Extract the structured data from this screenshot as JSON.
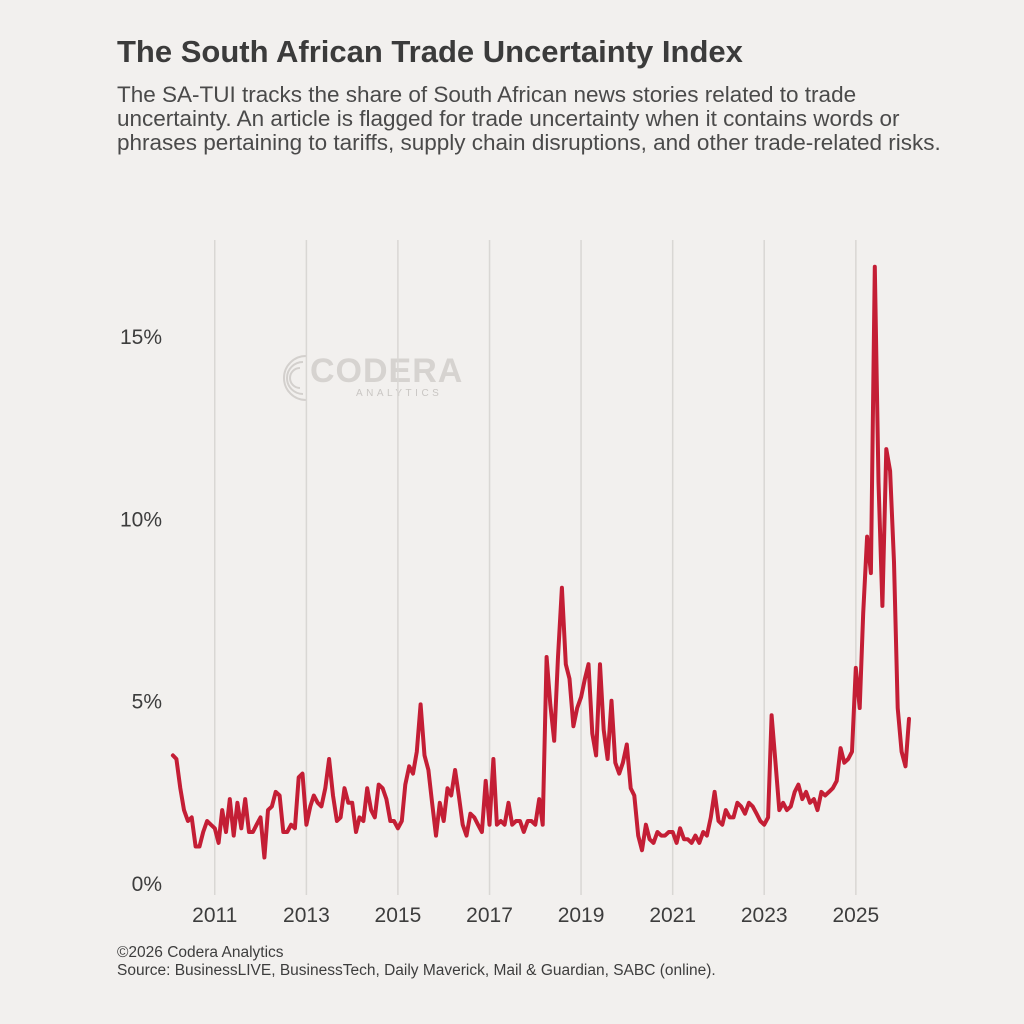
{
  "title": "The South African Trade Uncertainty Index",
  "subtitle": "The SA-TUI tracks the share of South African news stories related to trade uncertainty. An article is flagged for trade uncertainty when it contains words or phrases pertaining to tariffs, supply chain disruptions, and other trade-related risks.",
  "watermark": {
    "name": "CODERA",
    "tagline": "ANALYTICS"
  },
  "footer": {
    "copyright": "©2026 Codera Analytics",
    "source": "Source: BusinessLIVE, BusinessTech, Daily Maverick, Mail & Guardian, SABC (online)."
  },
  "colors": {
    "line": "#c41e35",
    "grid": "#d9d7d4",
    "background": "#f2f0ee",
    "text": "#3d3d3d"
  },
  "chart_data": {
    "type": "line",
    "xlim": [
      "2010-01-01",
      "2026-03-01"
    ],
    "ylim": [
      0,
      17
    ],
    "grid": "vertical only",
    "x_ticks": [
      {
        "date": "2011-01-01",
        "label": "2011"
      },
      {
        "date": "2013-01-01",
        "label": "2013"
      },
      {
        "date": "2015-01-01",
        "label": "2015"
      },
      {
        "date": "2017-01-01",
        "label": "2017"
      },
      {
        "date": "2019-01-01",
        "label": "2019"
      },
      {
        "date": "2021-01-01",
        "label": "2021"
      },
      {
        "date": "2023-01-01",
        "label": "2023"
      },
      {
        "date": "2025-01-01",
        "label": "2025"
      }
    ],
    "y_ticks": [
      {
        "value": 0,
        "label": "0%"
      },
      {
        "value": 5,
        "label": "5%"
      },
      {
        "value": 10,
        "label": "10%"
      },
      {
        "value": 15,
        "label": "15%"
      }
    ],
    "series": [
      {
        "values": [
          [
            "2010-02-01",
            3.5
          ],
          [
            "2010-03-01",
            3.4
          ],
          [
            "2010-04-01",
            2.6
          ],
          [
            "2010-05-01",
            2.0
          ],
          [
            "2010-06-01",
            1.7
          ],
          [
            "2010-07-01",
            1.8
          ],
          [
            "2010-08-01",
            1.0
          ],
          [
            "2010-09-01",
            1.0
          ],
          [
            "2010-10-01",
            1.4
          ],
          [
            "2010-11-01",
            1.7
          ],
          [
            "2010-12-01",
            1.6
          ],
          [
            "2011-01-01",
            1.5
          ],
          [
            "2011-02-01",
            1.1
          ],
          [
            "2011-03-01",
            2.0
          ],
          [
            "2011-04-01",
            1.4
          ],
          [
            "2011-05-01",
            2.3
          ],
          [
            "2011-06-01",
            1.3
          ],
          [
            "2011-07-01",
            2.2
          ],
          [
            "2011-08-01",
            1.5
          ],
          [
            "2011-09-01",
            2.3
          ],
          [
            "2011-10-01",
            1.4
          ],
          [
            "2011-11-01",
            1.4
          ],
          [
            "2011-12-01",
            1.6
          ],
          [
            "2012-01-01",
            1.8
          ],
          [
            "2012-02-01",
            0.7
          ],
          [
            "2012-03-01",
            2.0
          ],
          [
            "2012-04-01",
            2.1
          ],
          [
            "2012-05-01",
            2.5
          ],
          [
            "2012-06-01",
            2.4
          ],
          [
            "2012-07-01",
            1.4
          ],
          [
            "2012-08-01",
            1.4
          ],
          [
            "2012-09-01",
            1.6
          ],
          [
            "2012-10-01",
            1.5
          ],
          [
            "2012-11-01",
            2.9
          ],
          [
            "2012-12-01",
            3.0
          ],
          [
            "2013-01-01",
            1.6
          ],
          [
            "2013-02-01",
            2.1
          ],
          [
            "2013-03-01",
            2.4
          ],
          [
            "2013-04-01",
            2.2
          ],
          [
            "2013-05-01",
            2.1
          ],
          [
            "2013-06-01",
            2.6
          ],
          [
            "2013-07-01",
            3.4
          ],
          [
            "2013-08-01",
            2.4
          ],
          [
            "2013-09-01",
            1.7
          ],
          [
            "2013-10-01",
            1.8
          ],
          [
            "2013-11-01",
            2.6
          ],
          [
            "2013-12-01",
            2.2
          ],
          [
            "2014-01-01",
            2.2
          ],
          [
            "2014-02-01",
            1.4
          ],
          [
            "2014-03-01",
            1.8
          ],
          [
            "2014-04-01",
            1.7
          ],
          [
            "2014-05-01",
            2.6
          ],
          [
            "2014-06-01",
            2.0
          ],
          [
            "2014-07-01",
            1.8
          ],
          [
            "2014-08-01",
            2.7
          ],
          [
            "2014-09-01",
            2.6
          ],
          [
            "2014-10-01",
            2.3
          ],
          [
            "2014-11-01",
            1.7
          ],
          [
            "2014-12-01",
            1.7
          ],
          [
            "2015-01-01",
            1.5
          ],
          [
            "2015-02-01",
            1.7
          ],
          [
            "2015-03-01",
            2.7
          ],
          [
            "2015-04-01",
            3.2
          ],
          [
            "2015-05-01",
            3.0
          ],
          [
            "2015-06-01",
            3.6
          ],
          [
            "2015-07-01",
            4.9
          ],
          [
            "2015-08-01",
            3.5
          ],
          [
            "2015-09-01",
            3.1
          ],
          [
            "2015-10-01",
            2.2
          ],
          [
            "2015-11-01",
            1.3
          ],
          [
            "2015-12-01",
            2.2
          ],
          [
            "2016-01-01",
            1.7
          ],
          [
            "2016-02-01",
            2.6
          ],
          [
            "2016-03-01",
            2.4
          ],
          [
            "2016-04-01",
            3.1
          ],
          [
            "2016-05-01",
            2.4
          ],
          [
            "2016-06-01",
            1.6
          ],
          [
            "2016-07-01",
            1.3
          ],
          [
            "2016-08-01",
            1.9
          ],
          [
            "2016-09-01",
            1.8
          ],
          [
            "2016-10-01",
            1.6
          ],
          [
            "2016-11-01",
            1.4
          ],
          [
            "2016-12-01",
            2.8
          ],
          [
            "2017-01-01",
            1.6
          ],
          [
            "2017-02-01",
            3.4
          ],
          [
            "2017-03-01",
            1.6
          ],
          [
            "2017-04-01",
            1.7
          ],
          [
            "2017-05-01",
            1.6
          ],
          [
            "2017-06-01",
            2.2
          ],
          [
            "2017-07-01",
            1.6
          ],
          [
            "2017-08-01",
            1.7
          ],
          [
            "2017-09-01",
            1.7
          ],
          [
            "2017-10-01",
            1.4
          ],
          [
            "2017-11-01",
            1.7
          ],
          [
            "2017-12-01",
            1.7
          ],
          [
            "2018-01-01",
            1.6
          ],
          [
            "2018-02-01",
            2.3
          ],
          [
            "2018-03-01",
            1.6
          ],
          [
            "2018-04-01",
            6.2
          ],
          [
            "2018-05-01",
            4.9
          ],
          [
            "2018-06-01",
            3.9
          ],
          [
            "2018-07-01",
            6.2
          ],
          [
            "2018-08-01",
            8.1
          ],
          [
            "2018-09-01",
            6.0
          ],
          [
            "2018-10-01",
            5.6
          ],
          [
            "2018-11-01",
            4.3
          ],
          [
            "2018-12-01",
            4.8
          ],
          [
            "2019-01-01",
            5.1
          ],
          [
            "2019-02-01",
            5.6
          ],
          [
            "2019-03-01",
            6.0
          ],
          [
            "2019-04-01",
            4.1
          ],
          [
            "2019-05-01",
            3.5
          ],
          [
            "2019-06-01",
            6.0
          ],
          [
            "2019-07-01",
            4.2
          ],
          [
            "2019-08-01",
            3.4
          ],
          [
            "2019-09-01",
            5.0
          ],
          [
            "2019-10-01",
            3.3
          ],
          [
            "2019-11-01",
            3.0
          ],
          [
            "2019-12-01",
            3.3
          ],
          [
            "2020-01-01",
            3.8
          ],
          [
            "2020-02-01",
            2.6
          ],
          [
            "2020-03-01",
            2.4
          ],
          [
            "2020-04-01",
            1.3
          ],
          [
            "2020-05-01",
            0.9
          ],
          [
            "2020-06-01",
            1.6
          ],
          [
            "2020-07-01",
            1.2
          ],
          [
            "2020-08-01",
            1.1
          ],
          [
            "2020-09-01",
            1.4
          ],
          [
            "2020-10-01",
            1.3
          ],
          [
            "2020-11-01",
            1.3
          ],
          [
            "2020-12-01",
            1.4
          ],
          [
            "2021-01-01",
            1.4
          ],
          [
            "2021-02-01",
            1.1
          ],
          [
            "2021-03-01",
            1.5
          ],
          [
            "2021-04-01",
            1.2
          ],
          [
            "2021-05-01",
            1.2
          ],
          [
            "2021-06-01",
            1.1
          ],
          [
            "2021-07-01",
            1.3
          ],
          [
            "2021-08-01",
            1.1
          ],
          [
            "2021-09-01",
            1.4
          ],
          [
            "2021-10-01",
            1.3
          ],
          [
            "2021-11-01",
            1.8
          ],
          [
            "2021-12-01",
            2.5
          ],
          [
            "2022-01-01",
            1.7
          ],
          [
            "2022-02-01",
            1.6
          ],
          [
            "2022-03-01",
            2.0
          ],
          [
            "2022-04-01",
            1.8
          ],
          [
            "2022-05-01",
            1.8
          ],
          [
            "2022-06-01",
            2.2
          ],
          [
            "2022-07-01",
            2.1
          ],
          [
            "2022-08-01",
            1.9
          ],
          [
            "2022-09-01",
            2.2
          ],
          [
            "2022-10-01",
            2.1
          ],
          [
            "2022-11-01",
            1.9
          ],
          [
            "2022-12-01",
            1.7
          ],
          [
            "2023-01-01",
            1.6
          ],
          [
            "2023-02-01",
            1.8
          ],
          [
            "2023-03-01",
            4.6
          ],
          [
            "2023-04-01",
            3.3
          ],
          [
            "2023-05-01",
            2.0
          ],
          [
            "2023-06-01",
            2.2
          ],
          [
            "2023-07-01",
            2.0
          ],
          [
            "2023-08-01",
            2.1
          ],
          [
            "2023-09-01",
            2.5
          ],
          [
            "2023-10-01",
            2.7
          ],
          [
            "2023-11-01",
            2.3
          ],
          [
            "2023-12-01",
            2.5
          ],
          [
            "2024-01-01",
            2.2
          ],
          [
            "2024-02-01",
            2.3
          ],
          [
            "2024-03-01",
            2.0
          ],
          [
            "2024-04-01",
            2.5
          ],
          [
            "2024-05-01",
            2.4
          ],
          [
            "2024-06-01",
            2.5
          ],
          [
            "2024-07-01",
            2.6
          ],
          [
            "2024-08-01",
            2.8
          ],
          [
            "2024-09-01",
            3.7
          ],
          [
            "2024-10-01",
            3.3
          ],
          [
            "2024-11-01",
            3.4
          ],
          [
            "2024-12-01",
            3.6
          ],
          [
            "2025-01-01",
            5.9
          ],
          [
            "2025-02-01",
            4.8
          ],
          [
            "2025-03-01",
            7.4
          ],
          [
            "2025-04-01",
            9.5
          ],
          [
            "2025-05-01",
            8.5
          ],
          [
            "2025-06-01",
            16.9
          ],
          [
            "2025-07-01",
            11.0
          ],
          [
            "2025-08-01",
            7.6
          ],
          [
            "2025-09-01",
            11.9
          ],
          [
            "2025-10-01",
            11.3
          ],
          [
            "2025-11-01",
            8.8
          ],
          [
            "2025-12-01",
            4.8
          ],
          [
            "2026-01-01",
            3.6
          ],
          [
            "2026-02-01",
            3.2
          ],
          [
            "2026-03-01",
            4.5
          ]
        ]
      }
    ]
  }
}
